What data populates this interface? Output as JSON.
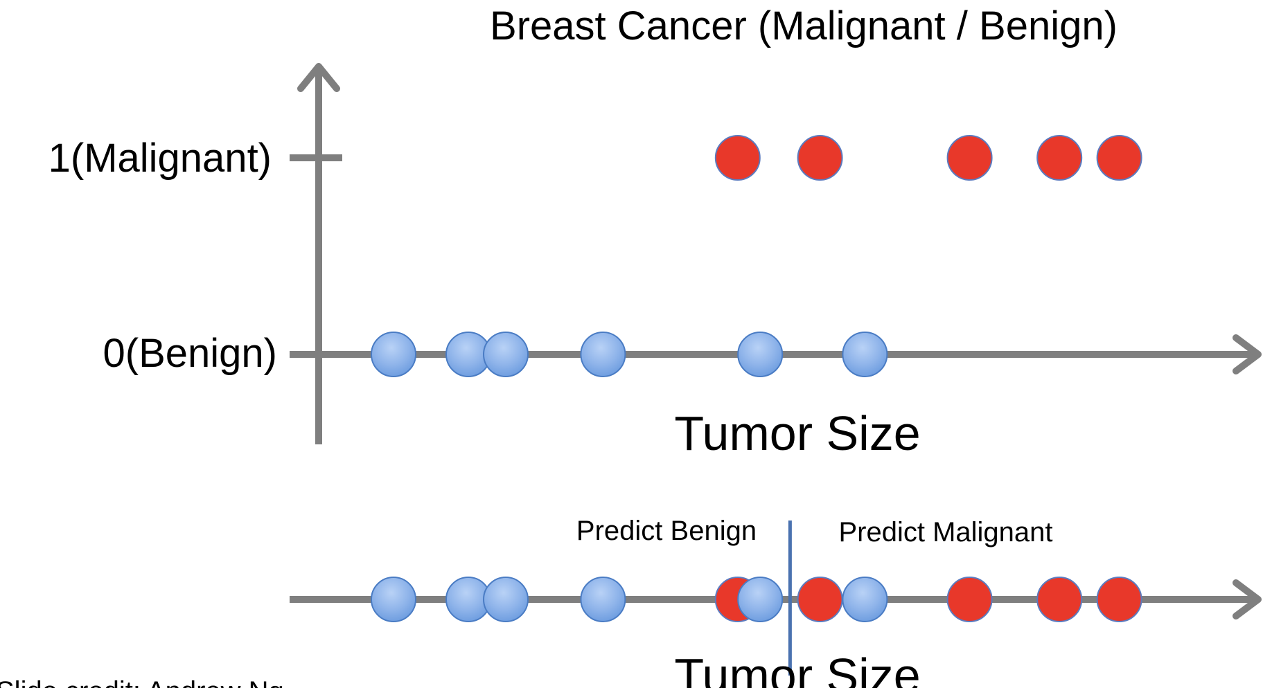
{
  "title": "Breast Cancer (Malignant / Benign)",
  "top_plot": {
    "y_tick_1": "1(Malignant)",
    "y_tick_0": "0(Benign)",
    "x_axis_label": "Tumor Size"
  },
  "bottom_plot": {
    "region_left_label": "Predict Benign",
    "region_right_label": "Predict Malignant",
    "x_axis_label": "Tumor Size"
  },
  "credit": "Slide credit: Andrew Ng",
  "colors": {
    "axis": "#7f7f7f",
    "benign_fill": "#8fb4ea",
    "benign_stroke": "#4a7cc4",
    "malignant_fill": "#e8382a",
    "malignant_stroke": "#5b7bbf",
    "threshold_line": "#4a72b0"
  },
  "chart_data": {
    "type": "scatter",
    "ylabel_ticks": [
      "0(Benign)",
      "1(Malignant)"
    ],
    "series": [
      {
        "name": "0(Benign)",
        "x": [
          1.0,
          2.0,
          2.5,
          3.8,
          5.9,
          7.3
        ],
        "y": [
          0,
          0,
          0,
          0,
          0,
          0
        ]
      },
      {
        "name": "1(Malignant)",
        "x": [
          5.6,
          6.7,
          8.7,
          9.9,
          10.7
        ],
        "y": [
          1,
          1,
          1,
          1,
          1
        ]
      }
    ],
    "threshold_x": 6.3
  }
}
